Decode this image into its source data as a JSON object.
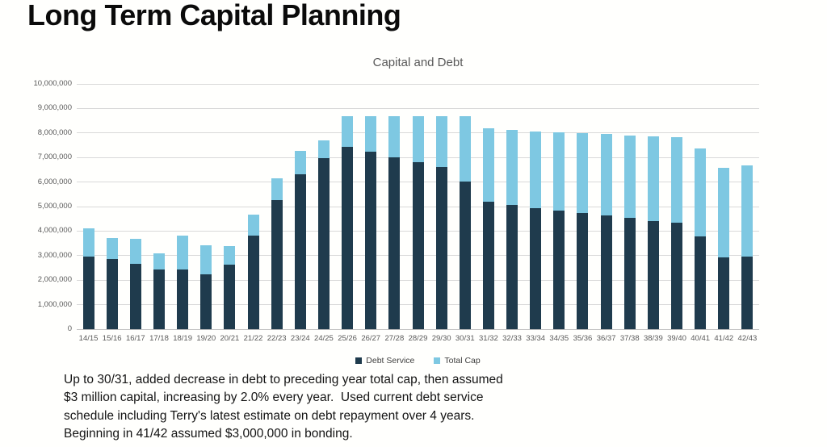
{
  "page_title": "Long Term Capital Planning",
  "chart_data": {
    "type": "bar",
    "stacked": true,
    "title": "Capital and Debt",
    "grid": "horizontal",
    "legend_position": "bottom-center",
    "ylim": [
      0,
      10000000
    ],
    "ytick_interval": 1000000,
    "ytick_labels": [
      "0",
      "1,000,000",
      "2,000,000",
      "3,000,000",
      "4,000,000",
      "5,000,000",
      "6,000,000",
      "7,000,000",
      "8,000,000",
      "9,000,000",
      "10,000,000"
    ],
    "categories": [
      "14/15",
      "15/16",
      "16/17",
      "17/18",
      "18/19",
      "19/20",
      "20/21",
      "21/22",
      "22/23",
      "23/24",
      "24/25",
      "25/26",
      "26/27",
      "27/28",
      "28/29",
      "29/30",
      "30/31",
      "31/32",
      "32/33",
      "33/34",
      "34/35",
      "35/36",
      "36/37",
      "37/38",
      "38/39",
      "39/40",
      "40/41",
      "41/42",
      "42/43"
    ],
    "series": [
      {
        "name": "Debt Service",
        "color": "#1f3b4d",
        "values": [
          2950000,
          2860000,
          2670000,
          2450000,
          2430000,
          2250000,
          2620000,
          3810000,
          5280000,
          6330000,
          6980000,
          7430000,
          7250000,
          7000000,
          6800000,
          6600000,
          6020000,
          5200000,
          5080000,
          4950000,
          4830000,
          4740000,
          4650000,
          4530000,
          4420000,
          4330000,
          3790000,
          2930000,
          2960000
        ]
      },
      {
        "name": "Total Cap",
        "color": "#7ec8e2",
        "values": [
          1150000,
          860000,
          1030000,
          630000,
          1400000,
          1180000,
          760000,
          870000,
          870000,
          950000,
          710000,
          1270000,
          1450000,
          1700000,
          1900000,
          2100000,
          2680000,
          3000000,
          3060000,
          3121200,
          3183624,
          3247296,
          3312242,
          3378487,
          3446057,
          3514978,
          3585278,
          3656983,
          3730123
        ]
      }
    ]
  },
  "footnote": {
    "lines": [
      "Up to 30/31, added decrease in debt to preceding year total cap, then assumed",
      "$3 million capital, increasing by 2.0% every year.  Used current debt service",
      "schedule including Terry's latest estimate on debt repayment over 4 years.",
      "Beginning in 41/42 assumed $3,000,000 in bonding."
    ]
  }
}
